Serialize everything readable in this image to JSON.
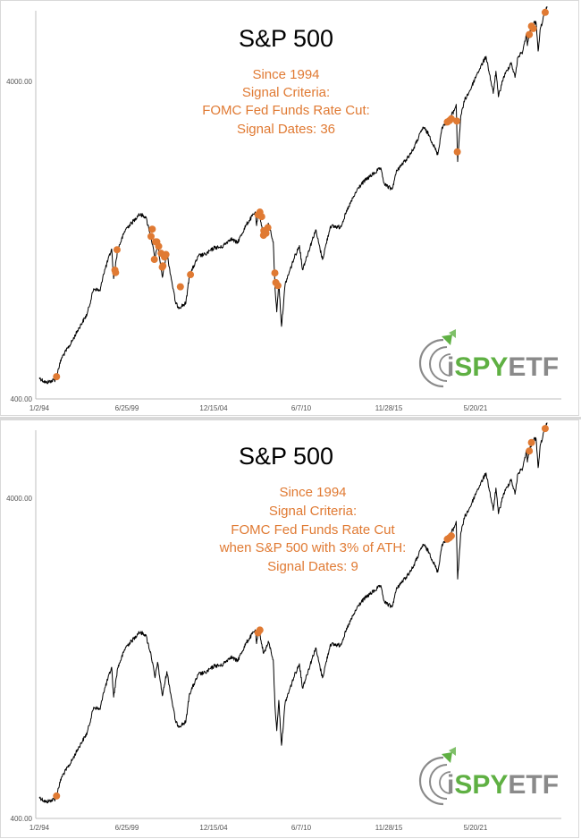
{
  "colors": {
    "line": "#000000",
    "marker": "#e07a33",
    "annotation": "#e07a33",
    "logo_gray": "#8a8a8a",
    "logo_green": "#5fb043",
    "frame": "#d9d9d9"
  },
  "logo": {
    "prefix": "i",
    "spy": "SPY",
    "etf": "ETF",
    "icon": "radar-signal-icon"
  },
  "chart_data": [
    {
      "type": "line",
      "title": "S&P 500",
      "annotation_lines": [
        "Since 1994",
        "Signal Criteria:",
        "FOMC Fed Funds Rate Cut:",
        "Signal Dates: 36"
      ],
      "y_scale": "log",
      "ylim": [
        400,
        6100
      ],
      "y_tick_labels": [
        "4000.00",
        "400.00"
      ],
      "x_tick_labels": [
        "1/2/94",
        "6/25/99",
        "12/15/04",
        "6/7/10",
        "11/28/15",
        "5/20/21"
      ],
      "grid": false,
      "legend": "none",
      "series": [
        {
          "x": [
            "1994-01-03",
            "1994-06-01",
            "1995-01-01",
            "1995-06-01",
            "1996-01-01",
            "1996-07-01",
            "1997-01-01",
            "1997-06-01",
            "1997-10-27",
            "1998-01-01",
            "1998-07-17",
            "1998-08-31",
            "1998-12-01",
            "1999-06-01",
            "1999-12-31",
            "2000-03-24",
            "2000-09-01",
            "2001-01-03",
            "2001-04-04",
            "2001-06-01",
            "2001-09-21",
            "2002-01-01",
            "2002-07-23",
            "2002-10-09",
            "2003-03-11",
            "2003-06-01",
            "2004-01-01",
            "2004-06-01",
            "2005-01-01",
            "2005-06-01",
            "2006-01-01",
            "2006-06-01",
            "2007-01-01",
            "2007-07-19",
            "2007-08-16",
            "2007-10-09",
            "2008-01-22",
            "2008-05-19",
            "2008-09-01",
            "2008-10-10",
            "2008-11-20",
            "2009-01-06",
            "2009-03-09",
            "2009-06-01",
            "2010-01-01",
            "2010-04-23",
            "2010-07-02",
            "2011-04-29",
            "2011-10-03",
            "2012-04-01",
            "2012-11-15",
            "2013-06-01",
            "2014-01-01",
            "2014-06-01",
            "2015-05-21",
            "2015-08-24",
            "2016-02-11",
            "2016-06-01",
            "2017-01-01",
            "2017-06-01",
            "2018-01-26",
            "2018-06-01",
            "2018-12-24",
            "2019-04-01",
            "2019-07-31",
            "2019-12-31",
            "2020-02-19",
            "2020-03-23",
            "2020-06-01",
            "2020-09-01",
            "2021-01-01",
            "2021-06-01",
            "2022-01-03",
            "2022-06-16",
            "2022-08-16",
            "2022-10-12",
            "2023-02-01",
            "2023-07-31",
            "2023-10-27",
            "2024-01-01",
            "2024-04-19",
            "2024-07-16",
            "2024-08-05",
            "2024-09-18",
            "2024-12-06",
            "2025-02-19",
            "2025-04-08",
            "2025-06-01",
            "2025-09-17",
            "2025-10-29"
          ],
          "y": [
            466,
            450,
            460,
            540,
            600,
            670,
            740,
            890,
            876,
            980,
            1186,
            957,
            1180,
            1370,
            1469,
            1527,
            1500,
            1300,
            1100,
            1230,
            966,
            1150,
            797,
            777,
            800,
            980,
            1130,
            1140,
            1200,
            1200,
            1280,
            1240,
            1420,
            1553,
            1406,
            1565,
            1310,
            1420,
            1250,
            899,
            752,
            935,
            677,
            920,
            1120,
            1217,
            1022,
            1363,
            1099,
            1400,
            1390,
            1620,
            1850,
            1950,
            2130,
            1893,
            1829,
            2100,
            2270,
            2430,
            2872,
            2720,
            2351,
            2870,
            2980,
            3230,
            3386,
            2237,
            3100,
            3500,
            3750,
            4200,
            4796,
            3667,
            4305,
            3577,
            4100,
            4588,
            4117,
            4769,
            4967,
            5667,
            5186,
            5618,
            6090,
            6144,
            4983,
            5900,
            6600,
            6890
          ]
        }
      ],
      "signals": {
        "x": [
          "1995-02-01",
          "1998-09-29",
          "1998-10-15",
          "1998-11-17",
          "2001-01-03",
          "2001-01-31",
          "2001-03-20",
          "2001-04-18",
          "2001-05-15",
          "2001-06-27",
          "2001-08-21",
          "2001-09-17",
          "2001-10-02",
          "2001-11-06",
          "2001-12-11",
          "2002-11-06",
          "2003-06-25",
          "2007-09-18",
          "2007-10-31",
          "2007-12-11",
          "2008-01-22",
          "2008-01-30",
          "2008-03-18",
          "2008-04-30",
          "2008-10-08",
          "2008-10-29",
          "2008-12-16",
          "2019-07-31",
          "2019-09-18",
          "2019-10-30",
          "2020-03-03",
          "2020-03-15",
          "2024-09-18",
          "2024-11-07",
          "2024-12-18",
          "2025-09-17"
        ],
        "y": [
          470,
          1018,
          1000,
          1180,
          1300,
          1370,
          1100,
          1250,
          1250,
          1210,
          1150,
          1040,
          1050,
          1120,
          1140,
          902,
          985,
          1520,
          1550,
          1500,
          1310,
          1355,
          1330,
          1385,
          997,
          930,
          910,
          2980,
          3010,
          3050,
          3000,
          2400,
          5618,
          5970,
          5870,
          6600
        ]
      }
    },
    {
      "type": "line",
      "title": "S&P 500",
      "annotation_lines": [
        "Since 1994",
        "Signal Criteria:",
        "FOMC Fed Funds Rate Cut",
        "when S&P 500 with 3% of ATH:",
        "Signal Dates: 9"
      ],
      "y_scale": "log",
      "ylim": [
        400,
        6100
      ],
      "y_tick_labels": [
        "4000.00",
        "400.00"
      ],
      "x_tick_labels": [
        "1/2/94",
        "6/25/99",
        "12/15/04",
        "6/7/10",
        "11/28/15",
        "5/20/21"
      ],
      "grid": false,
      "legend": "none",
      "series": [
        {
          "x": [
            "1994-01-03",
            "1994-06-01",
            "1995-01-01",
            "1995-06-01",
            "1996-01-01",
            "1996-07-01",
            "1997-01-01",
            "1997-06-01",
            "1997-10-27",
            "1998-01-01",
            "1998-07-17",
            "1998-08-31",
            "1998-12-01",
            "1999-06-01",
            "1999-12-31",
            "2000-03-24",
            "2000-09-01",
            "2001-01-03",
            "2001-04-04",
            "2001-06-01",
            "2001-09-21",
            "2002-01-01",
            "2002-07-23",
            "2002-10-09",
            "2003-03-11",
            "2003-06-01",
            "2004-01-01",
            "2004-06-01",
            "2005-01-01",
            "2005-06-01",
            "2006-01-01",
            "2006-06-01",
            "2007-01-01",
            "2007-07-19",
            "2007-08-16",
            "2007-10-09",
            "2008-01-22",
            "2008-05-19",
            "2008-09-01",
            "2008-10-10",
            "2008-11-20",
            "2009-01-06",
            "2009-03-09",
            "2009-06-01",
            "2010-01-01",
            "2010-04-23",
            "2010-07-02",
            "2011-04-29",
            "2011-10-03",
            "2012-04-01",
            "2012-11-15",
            "2013-06-01",
            "2014-01-01",
            "2014-06-01",
            "2015-05-21",
            "2015-08-24",
            "2016-02-11",
            "2016-06-01",
            "2017-01-01",
            "2017-06-01",
            "2018-01-26",
            "2018-06-01",
            "2018-12-24",
            "2019-04-01",
            "2019-07-31",
            "2019-12-31",
            "2020-02-19",
            "2020-03-23",
            "2020-06-01",
            "2020-09-01",
            "2021-01-01",
            "2021-06-01",
            "2022-01-03",
            "2022-06-16",
            "2022-08-16",
            "2022-10-12",
            "2023-02-01",
            "2023-07-31",
            "2023-10-27",
            "2024-01-01",
            "2024-04-19",
            "2024-07-16",
            "2024-08-05",
            "2024-09-18",
            "2024-12-06",
            "2025-02-19",
            "2025-04-08",
            "2025-06-01",
            "2025-09-17",
            "2025-10-29"
          ],
          "y": [
            466,
            450,
            460,
            540,
            600,
            670,
            740,
            890,
            876,
            980,
            1186,
            957,
            1180,
            1370,
            1469,
            1527,
            1500,
            1300,
            1100,
            1230,
            966,
            1150,
            797,
            777,
            800,
            980,
            1130,
            1140,
            1200,
            1200,
            1280,
            1240,
            1420,
            1553,
            1406,
            1565,
            1310,
            1420,
            1250,
            899,
            752,
            935,
            677,
            920,
            1120,
            1217,
            1022,
            1363,
            1099,
            1400,
            1390,
            1620,
            1850,
            1950,
            2130,
            1893,
            1829,
            2100,
            2270,
            2430,
            2872,
            2720,
            2351,
            2870,
            2980,
            3230,
            3386,
            2237,
            3100,
            3500,
            3750,
            4200,
            4796,
            3667,
            4305,
            3577,
            4100,
            4588,
            4117,
            4769,
            4967,
            5667,
            5186,
            5618,
            6090,
            6144,
            4983,
            5900,
            6600,
            6890
          ]
        }
      ],
      "signals": {
        "x": [
          "1995-02-01",
          "2007-09-18",
          "2007-10-31",
          "2019-07-31",
          "2019-09-18",
          "2019-10-30",
          "2024-09-18",
          "2024-11-07",
          "2025-09-17"
        ],
        "y": [
          470,
          1520,
          1550,
          2980,
          3010,
          3050,
          5618,
          5970,
          6600
        ]
      }
    }
  ]
}
